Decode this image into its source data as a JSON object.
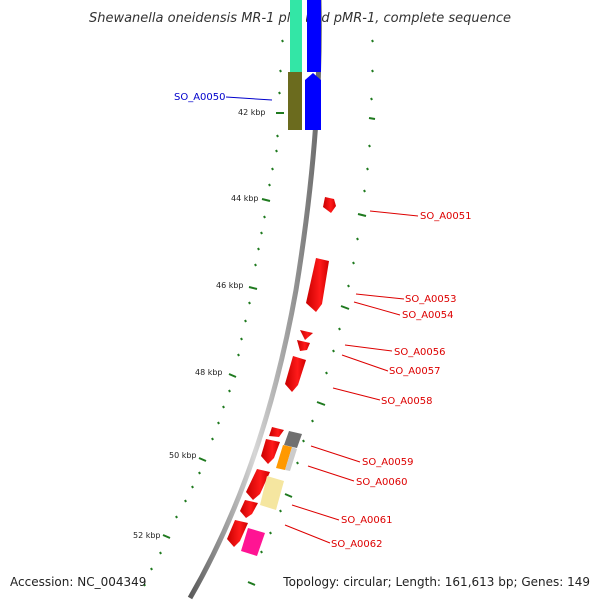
{
  "title": "Shewanella oneidensis MR-1 plasmid pMR-1, complete sequence",
  "accession": "Accession: NC_004349",
  "summary": "Topology: circular; Length: 161,613 bp; Genes: 149",
  "colors": {
    "backbone": "#8a8a8a",
    "tick": "#1f7a1f",
    "label_red": "#dd0000",
    "label_blue": "#0000cc",
    "cds_red": "#ff0000",
    "blue_gene": "#0000ff",
    "olive": "#6b6b1e",
    "aqua": "#33e6a6",
    "grey": "#707070",
    "orange": "#ff9900",
    "pale_yellow": "#f5e6a0",
    "magenta": "#ff1493",
    "light_grey": "#cccccc"
  },
  "scale_labels": [
    "42 kbp",
    "44 kbp",
    "46 kbp",
    "48 kbp",
    "50 kbp",
    "52 kbp"
  ],
  "gene_labels": [
    {
      "text": "SO_A0050",
      "color": "blue"
    },
    {
      "text": "SO_A0051",
      "color": "red"
    },
    {
      "text": "SO_A0053",
      "color": "red"
    },
    {
      "text": "SO_A0054",
      "color": "red"
    },
    {
      "text": "SO_A0056",
      "color": "red"
    },
    {
      "text": "SO_A0057",
      "color": "red"
    },
    {
      "text": "SO_A0058",
      "color": "red"
    },
    {
      "text": "SO_A0059",
      "color": "red"
    },
    {
      "text": "SO_A0060",
      "color": "red"
    },
    {
      "text": "SO_A0061",
      "color": "red"
    },
    {
      "text": "SO_A0062",
      "color": "red"
    }
  ]
}
